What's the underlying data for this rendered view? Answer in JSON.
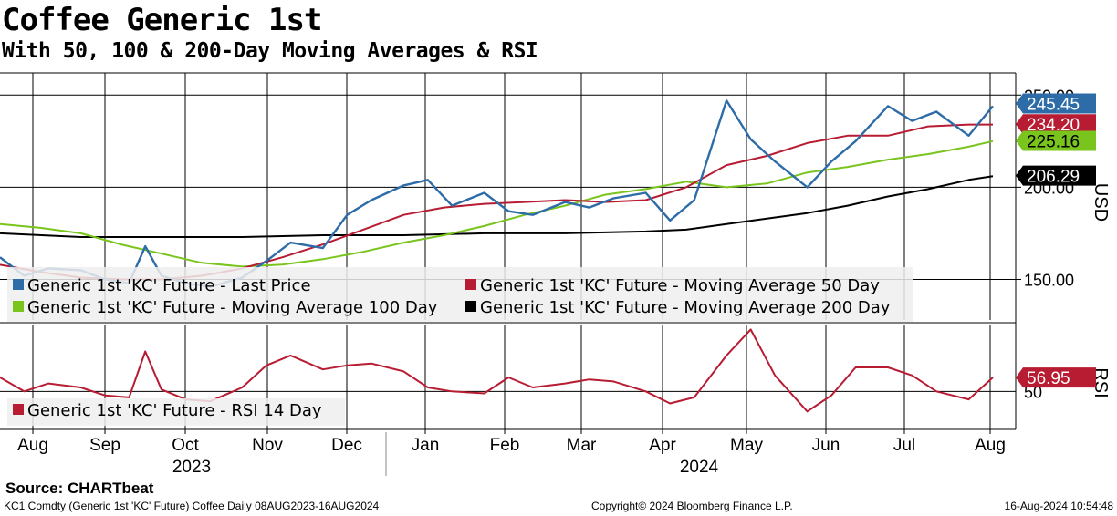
{
  "header": {
    "title": "Coffee Generic 1st",
    "subtitle": "With 50, 100 & 200-Day Moving Averages & RSI"
  },
  "footer": {
    "source": "Source: CHARTbeat",
    "security": "KC1 Comdty (Generic 1st 'KC' Future) Coffee  Daily 08AUG2023-16AUG2024",
    "copyright": "Copyright© 2024 Bloomberg Finance L.P.",
    "timestamp": "16-Aug-2024 10:54:48"
  },
  "colors": {
    "last_price": "#2e6ca8",
    "ma50": "#b81c33",
    "ma100": "#7ac41e",
    "ma200": "#000000",
    "rsi": "#b81c33",
    "grid": "#000000",
    "legend_bg": "#eeeeee"
  },
  "chart_data": [
    {
      "type": "line",
      "name": "price-panel",
      "ylabel": "USD",
      "ylim": [
        128,
        262
      ],
      "yticks": [
        {
          "value": 150,
          "label": "150.00"
        },
        {
          "value": 200,
          "label": "200.00"
        },
        {
          "value": 250,
          "label": "250.00"
        }
      ],
      "x_axis": {
        "months": [
          "Aug",
          "Sep",
          "Oct",
          "Nov",
          "Dec",
          "Jan",
          "Feb",
          "Mar",
          "Apr",
          "May",
          "Jun",
          "Jul",
          "Aug"
        ],
        "years": [
          "2023",
          "2024"
        ]
      },
      "legend": [
        "Generic 1st 'KC' Future - Last Price",
        "Generic 1st 'KC' Future - Moving Average 50 Day",
        "Generic 1st 'KC' Future - Moving Average 100 Day",
        "Generic 1st 'KC' Future - Moving Average 200 Day"
      ],
      "last_labels": {
        "last_price": "245.45",
        "ma50": "234.20",
        "ma100": "225.16",
        "ma200": "206.29"
      },
      "series": [
        {
          "name": "Last Price",
          "key": "last_price",
          "x": [
            0,
            0.3,
            0.6,
            1,
            1.3,
            1.6,
            1.8,
            2,
            2.3,
            2.6,
            3,
            3.3,
            3.6,
            4,
            4.3,
            4.6,
            5,
            5.3,
            5.6,
            6,
            6.3,
            6.6,
            7,
            7.3,
            7.6,
            8,
            8.3,
            8.6,
            9,
            9.3,
            9.6,
            10,
            10.3,
            10.6,
            11,
            11.3,
            11.6,
            12,
            12.3
          ],
          "values": [
            162,
            152,
            156,
            155,
            150,
            148,
            168,
            152,
            148,
            146,
            151,
            160,
            170,
            167,
            185,
            193,
            201,
            204,
            190,
            197,
            187,
            185,
            192,
            189,
            194,
            197,
            182,
            193,
            247,
            226,
            214,
            200,
            214,
            225,
            244,
            236,
            241,
            228,
            244
          ]
        },
        {
          "name": "Moving Average 50 Day",
          "key": "ma50",
          "x": [
            0,
            0.5,
            1,
            1.5,
            2,
            2.5,
            3,
            3.5,
            4,
            4.5,
            5,
            5.5,
            6,
            6.5,
            7,
            7.5,
            8,
            8.5,
            9,
            9.5,
            10,
            10.5,
            11,
            11.5,
            12,
            12.3
          ],
          "values": [
            158,
            154,
            151,
            150,
            150,
            152,
            156,
            162,
            169,
            177,
            185,
            189,
            191,
            192,
            193,
            192,
            193,
            200,
            212,
            217,
            224,
            228,
            228,
            233,
            234,
            234
          ]
        },
        {
          "name": "Moving Average 100 Day",
          "key": "ma100",
          "x": [
            0,
            0.5,
            1,
            1.5,
            2,
            2.5,
            3,
            3.5,
            4,
            4.5,
            5,
            5.5,
            6,
            6.5,
            7,
            7.5,
            8,
            8.5,
            9,
            9.5,
            10,
            10.5,
            11,
            11.5,
            12,
            12.3
          ],
          "values": [
            180,
            178,
            175,
            169,
            164,
            159,
            157,
            158,
            161,
            165,
            170,
            174,
            179,
            185,
            190,
            196,
            199,
            203,
            200,
            202,
            208,
            211,
            215,
            218,
            222,
            225
          ]
        },
        {
          "name": "Moving Average 200 Day",
          "key": "ma200",
          "x": [
            0,
            1,
            2,
            3,
            4,
            5,
            6,
            7,
            8,
            8.5,
            9,
            9.5,
            10,
            10.5,
            11,
            11.5,
            12,
            12.3
          ],
          "values": [
            175,
            173,
            173,
            173,
            174,
            174,
            175,
            175,
            176,
            177,
            180,
            183,
            186,
            190,
            195,
            199,
            204,
            206
          ]
        }
      ]
    },
    {
      "type": "line",
      "name": "rsi-panel",
      "ylabel": "RSI",
      "ylim": [
        31,
        83
      ],
      "yticks": [
        {
          "value": 50,
          "label": "50"
        }
      ],
      "legend": [
        "Generic 1st 'KC' Future - RSI 14 Day"
      ],
      "last_label": "56.95",
      "series": [
        {
          "name": "RSI 14 Day",
          "key": "rsi",
          "x": [
            0,
            0.3,
            0.6,
            1,
            1.3,
            1.6,
            1.8,
            2,
            2.3,
            2.6,
            3,
            3.3,
            3.6,
            4,
            4.3,
            4.6,
            5,
            5.3,
            5.6,
            6,
            6.3,
            6.6,
            7,
            7.3,
            7.6,
            8,
            8.3,
            8.6,
            9,
            9.3,
            9.6,
            10,
            10.3,
            10.6,
            11,
            11.3,
            11.6,
            12,
            12.3
          ],
          "values": [
            57,
            50,
            54,
            52,
            48,
            47,
            70,
            51,
            46,
            45,
            52,
            63,
            68,
            61,
            63,
            64,
            60,
            52,
            50,
            49,
            57,
            52,
            54,
            56,
            55,
            50,
            44,
            47,
            68,
            81,
            58,
            40,
            48,
            62,
            62,
            58,
            50,
            46,
            57
          ]
        }
      ]
    }
  ]
}
